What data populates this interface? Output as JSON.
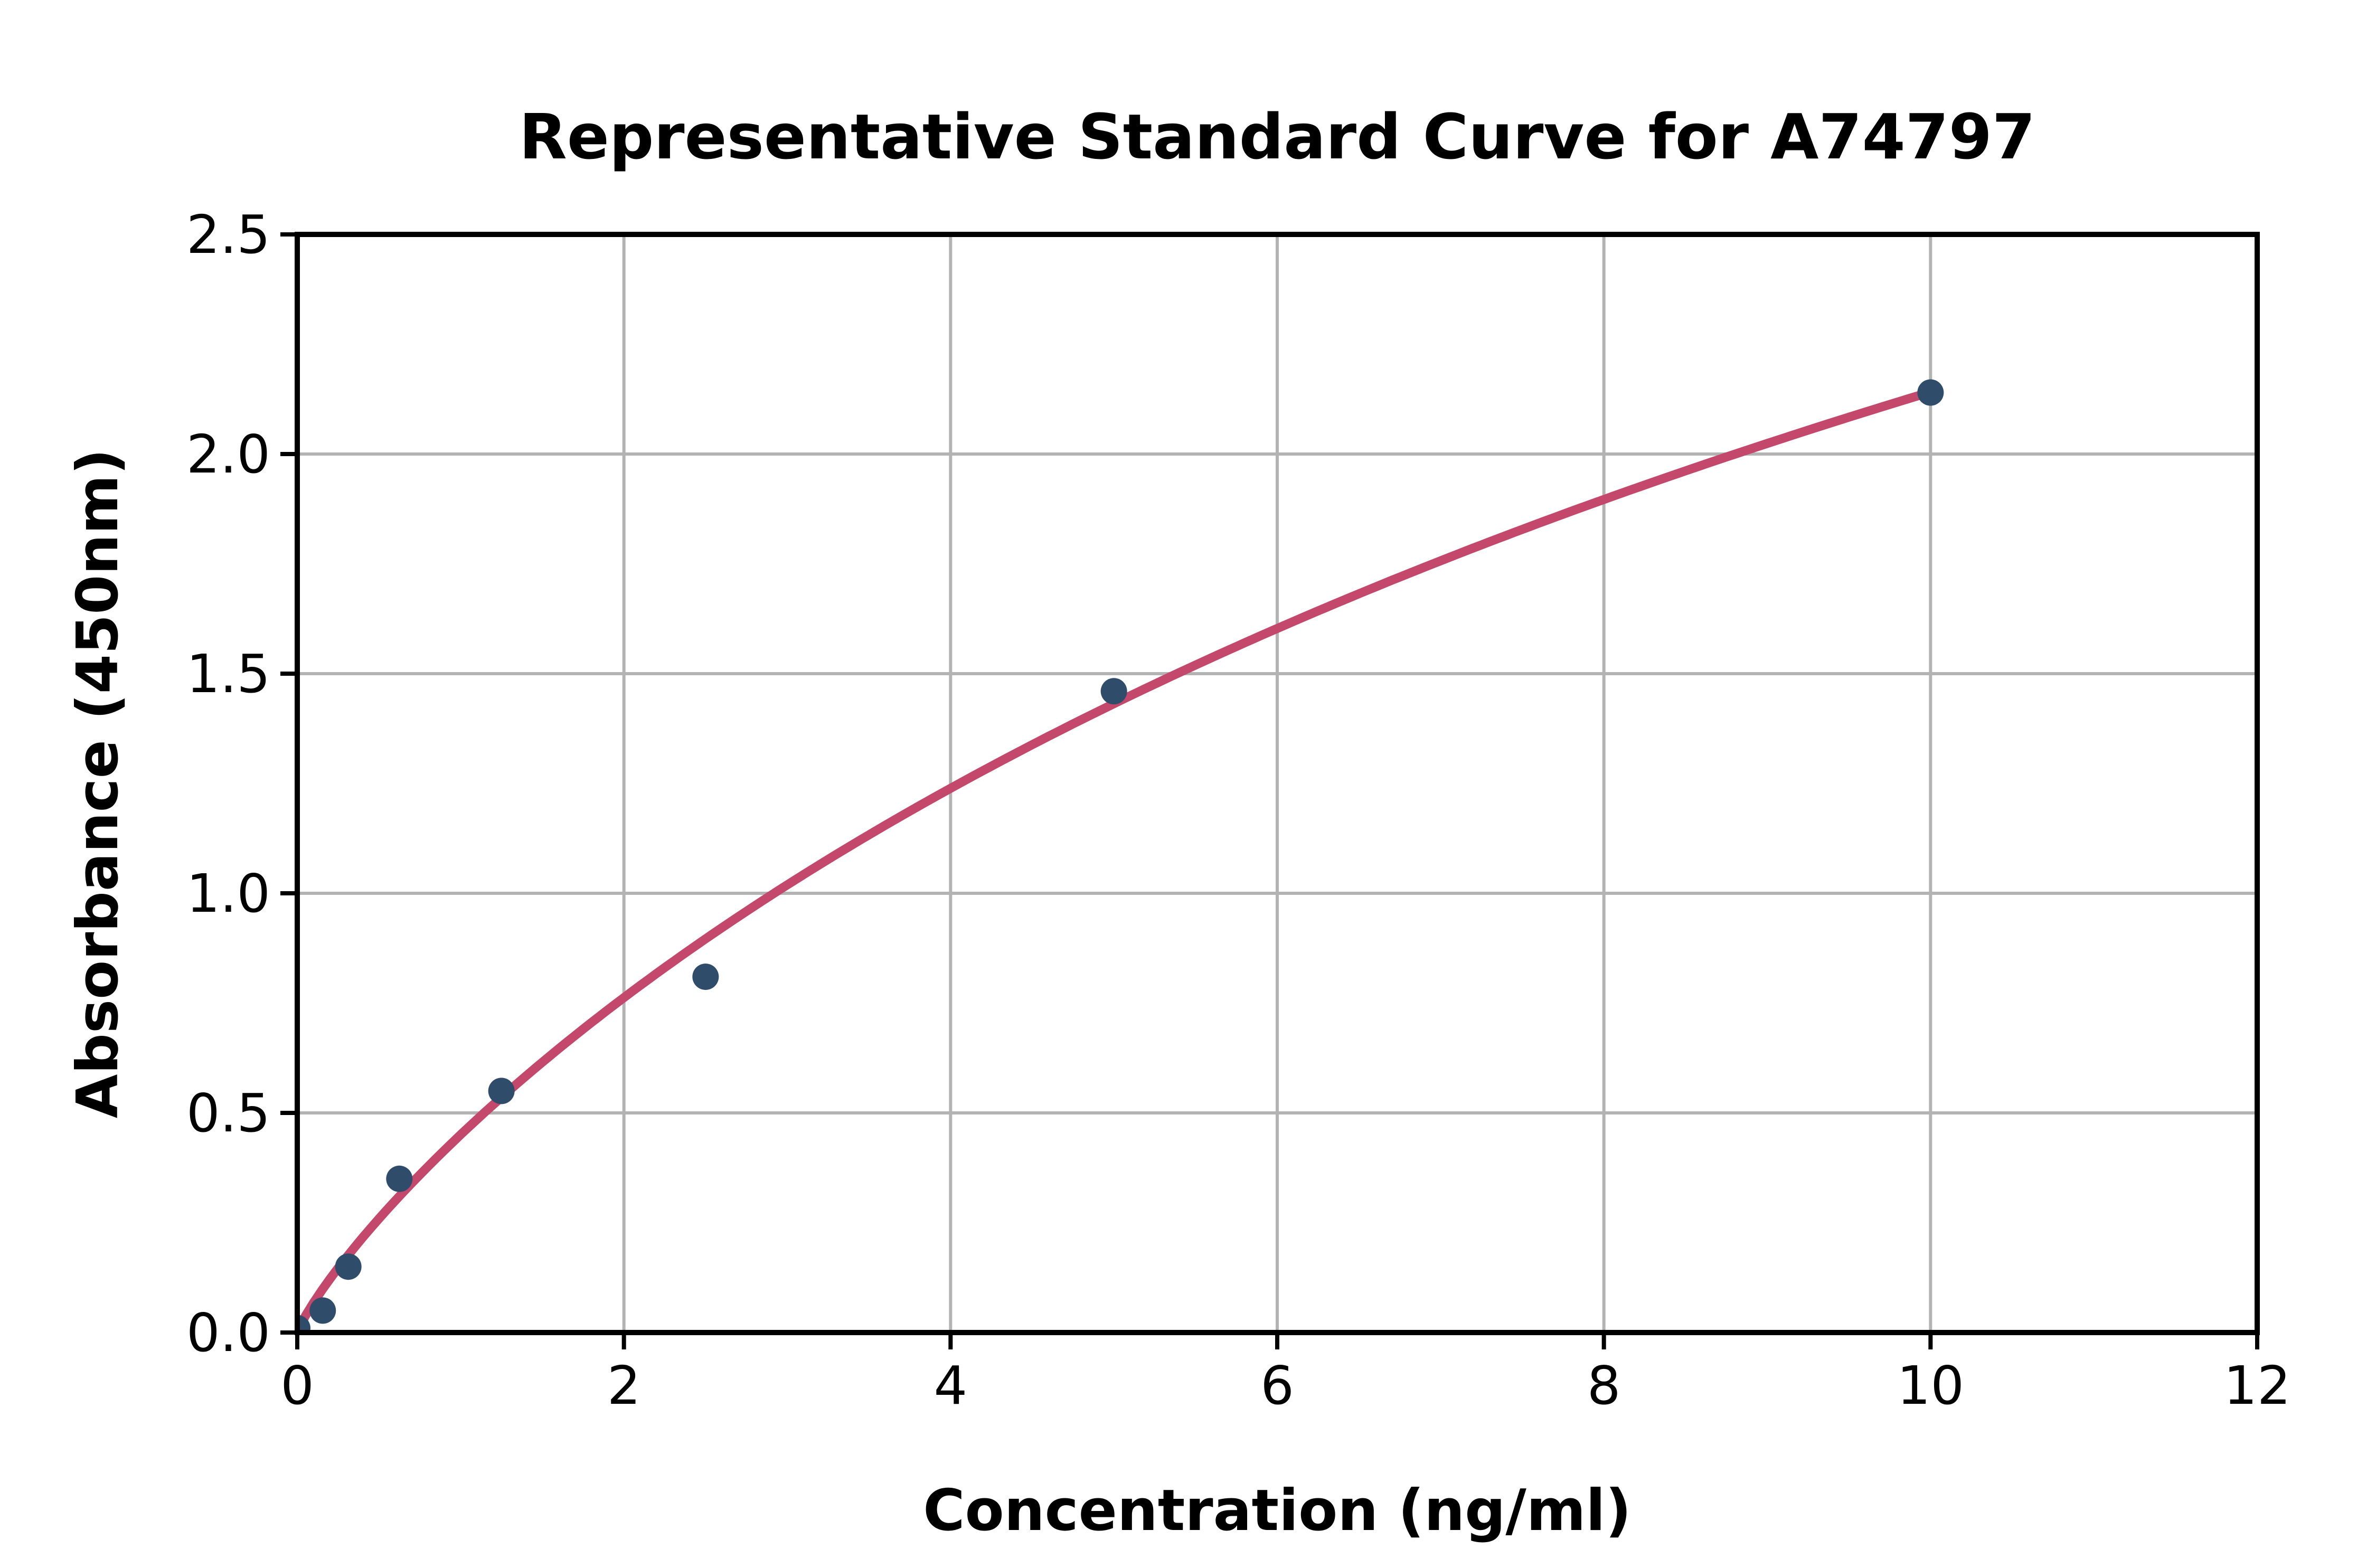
{
  "page": {
    "background_color": "#ffffff"
  },
  "chart_data": {
    "type": "scatter",
    "title": "Representative Standard Curve for A74797",
    "xlabel": "Concentration (ng/ml)",
    "ylabel": "Absorbance (450nm)",
    "xlim": [
      0,
      12
    ],
    "ylim": [
      0,
      2.5
    ],
    "xticks": [
      0,
      2,
      4,
      6,
      8,
      10,
      12
    ],
    "xtick_labels": [
      "0",
      "2",
      "4",
      "6",
      "8",
      "10",
      "12"
    ],
    "yticks": [
      0,
      0.5,
      1.0,
      1.5,
      2.0,
      2.5
    ],
    "ytick_labels": [
      "0.0",
      "0.5",
      "1.0",
      "1.5",
      "2.0",
      "2.5"
    ],
    "grid": true,
    "grid_color": "#b3b3b3",
    "axis_color": "#000000",
    "legend_position": "none",
    "series": [
      {
        "name": "standard-points",
        "type": "scatter",
        "marker_color": "#2F4D6B",
        "points": [
          {
            "x": 0,
            "y": 0.01
          },
          {
            "x": 0.156,
            "y": 0.05
          },
          {
            "x": 0.3125,
            "y": 0.15
          },
          {
            "x": 0.625,
            "y": 0.35
          },
          {
            "x": 1.25,
            "y": 0.55
          },
          {
            "x": 2.5,
            "y": 0.81
          },
          {
            "x": 5,
            "y": 1.46
          },
          {
            "x": 10,
            "y": 2.14
          }
        ]
      },
      {
        "name": "fitted-curve",
        "type": "line",
        "line_color": "#C3486C",
        "model": "y = d * x^b / (c^b + x^b)",
        "params": {
          "b": 0.85,
          "c": 17.58,
          "d": 5.6
        },
        "x_range": [
          0,
          10
        ]
      }
    ]
  }
}
